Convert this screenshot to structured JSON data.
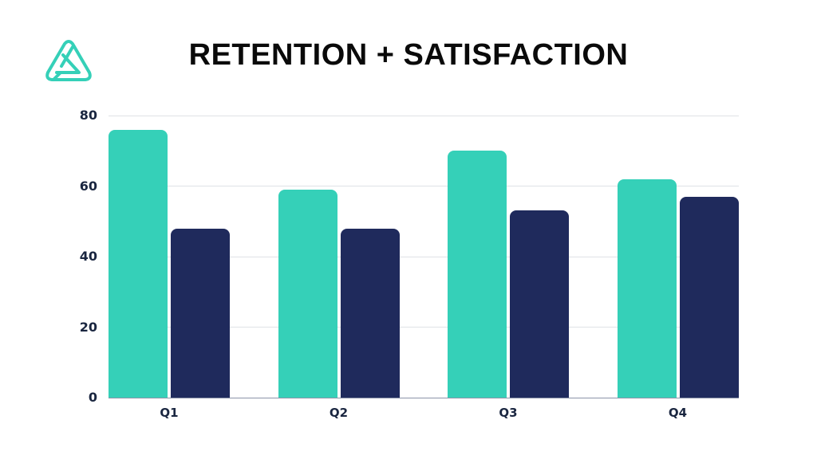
{
  "header": {
    "title": "RETENTION + SATISFACTION",
    "logo_icon": "triangle-knot-logo"
  },
  "colors": {
    "series1": "#35d0b8",
    "series2": "#1f2a5c",
    "grid": "#dfe2e6",
    "axis": "#8b93a8",
    "text": "#1a2640"
  },
  "chart_data": {
    "type": "bar",
    "title": "RETENTION + SATISFACTION",
    "xlabel": "",
    "ylabel": "",
    "categories": [
      "Q1",
      "Q2",
      "Q3",
      "Q4"
    ],
    "series": [
      {
        "name": "Retention",
        "color": "#35d0b8",
        "values": [
          76,
          59,
          70,
          62
        ]
      },
      {
        "name": "Satisfaction",
        "color": "#1f2a5c",
        "values": [
          48,
          48,
          53,
          57
        ]
      }
    ],
    "ylim": [
      0,
      80
    ],
    "yticks": [
      "0",
      "20",
      "40",
      "60",
      "80"
    ],
    "grid": true,
    "legend": "none"
  }
}
